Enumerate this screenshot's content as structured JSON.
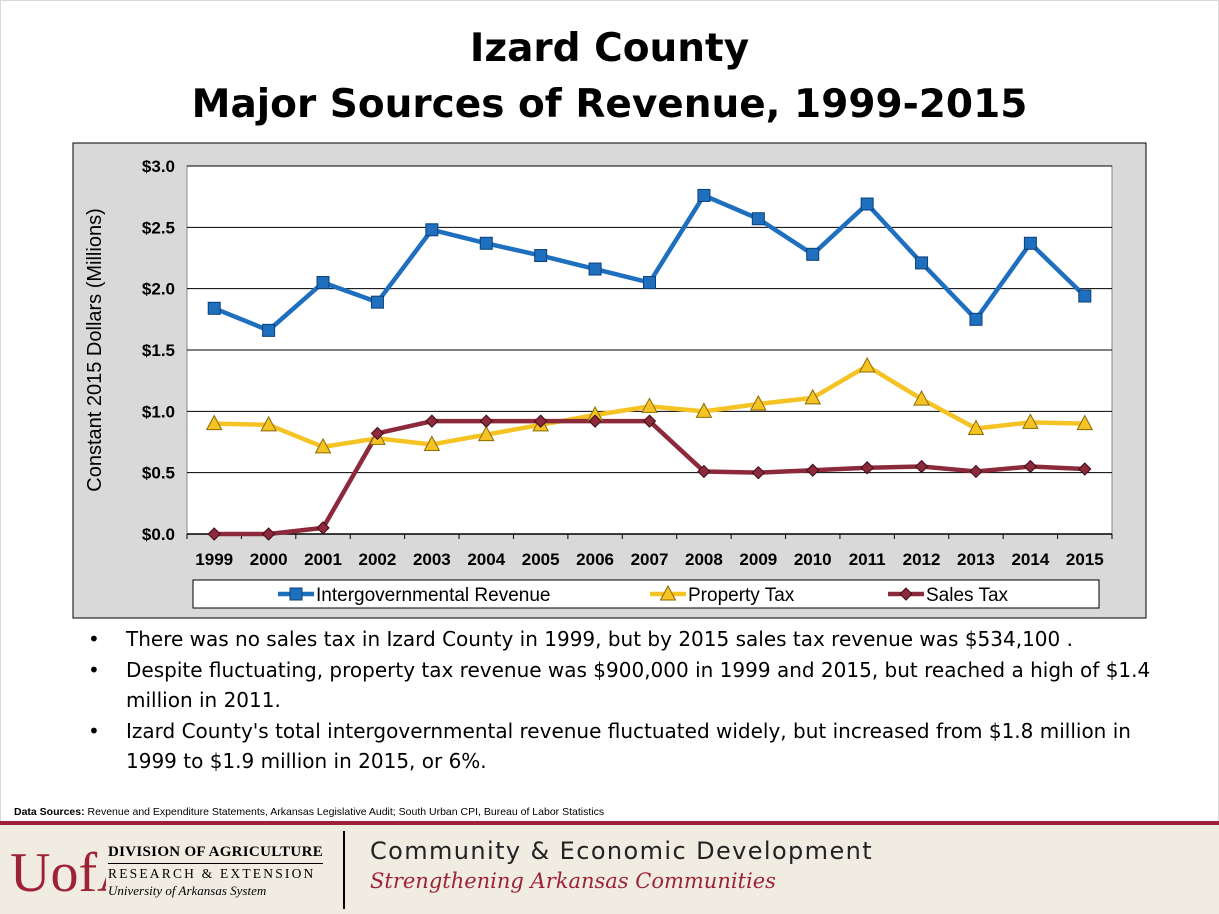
{
  "slide": {
    "title_line1": "Izard County",
    "title_line2": "Major Sources of Revenue, 1999-2015",
    "bullets": [
      "There was no sales tax in Izard County in 1999, but by 2015 sales tax revenue was $534,100 .",
      "Despite fluctuating, property tax revenue was $900,000 in 1999 and 2015, but reached a high of $1.4 million in 2011.",
      "Izard County's total intergovernmental revenue fluctuated widely, but increased from $1.8 million in 1999 to $1.9 million in 2015, or 6%."
    ],
    "bullet_marker": "•",
    "sources_label": "Data Sources:",
    "sources_text": "Revenue and Expenditure Statements, Arkansas Legislative Audit; South Urban CPI, Bureau of Labor Statistics"
  },
  "chart_data": {
    "type": "line",
    "title": "",
    "xlabel": "",
    "ylabel": "Constant 2015 Dollars (Millions)",
    "ylim": [
      0,
      3.0
    ],
    "yticks": [
      0.0,
      0.5,
      1.0,
      1.5,
      2.0,
      2.5,
      3.0
    ],
    "ytick_labels": [
      "$0.0",
      "$0.5",
      "$1.0",
      "$1.5",
      "$2.0",
      "$2.5",
      "$3.0"
    ],
    "categories": [
      "1999",
      "2000",
      "2001",
      "2002",
      "2003",
      "2004",
      "2005",
      "2006",
      "2007",
      "2008",
      "2009",
      "2010",
      "2011",
      "2012",
      "2013",
      "2014",
      "2015"
    ],
    "grid": "horizontal",
    "legend_position": "bottom",
    "series": [
      {
        "name": "Intergovernmental Revenue",
        "color": "#1f6fbf",
        "marker": "square",
        "values": [
          1.84,
          1.66,
          2.05,
          1.89,
          2.48,
          2.37,
          2.27,
          2.16,
          2.05,
          2.76,
          2.57,
          2.28,
          2.69,
          2.21,
          1.75,
          2.37,
          1.94
        ]
      },
      {
        "name": "Property Tax",
        "color": "#f6c324",
        "marker": "triangle",
        "values": [
          0.9,
          0.89,
          0.71,
          0.78,
          0.73,
          0.81,
          0.89,
          0.97,
          1.04,
          1.0,
          1.06,
          1.11,
          1.37,
          1.1,
          0.86,
          0.91,
          0.9
        ]
      },
      {
        "name": "Sales Tax",
        "color": "#8c2a3c",
        "marker": "diamond",
        "values": [
          0.0,
          0.0,
          0.05,
          0.82,
          0.92,
          0.92,
          0.92,
          0.92,
          0.92,
          0.51,
          0.5,
          0.52,
          0.54,
          0.55,
          0.51,
          0.55,
          0.53
        ]
      }
    ]
  },
  "footer": {
    "logo_text": "UofA",
    "org_line1": "DIVISION OF AGRICULTURE",
    "org_line2": "RESEARCH & EXTENSION",
    "org_line3": "University of Arkansas System",
    "program": "Community & Economic Development",
    "tagline": "Strengthening Arkansas Communities"
  }
}
